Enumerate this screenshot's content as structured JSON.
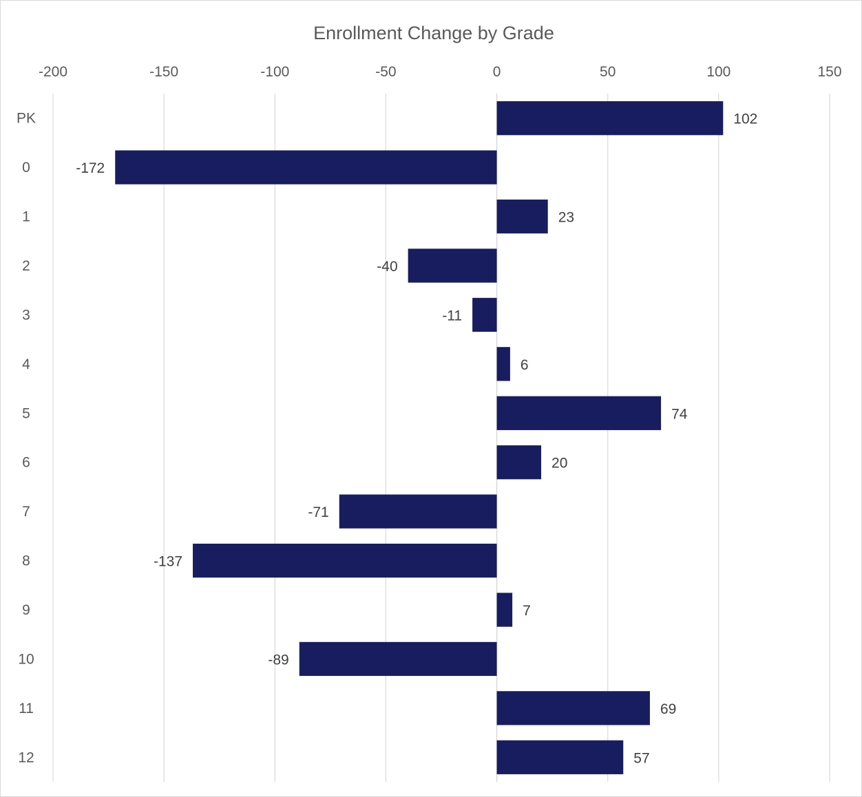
{
  "chart_data": {
    "type": "bar",
    "orientation": "horizontal",
    "title": "Enrollment Change by Grade",
    "categories": [
      "PK",
      "0",
      "1",
      "2",
      "3",
      "4",
      "5",
      "6",
      "7",
      "8",
      "9",
      "10",
      "11",
      "12"
    ],
    "values": [
      102,
      -172,
      23,
      -40,
      -11,
      6,
      74,
      20,
      -71,
      -137,
      7,
      -89,
      69,
      57
    ],
    "xlim": [
      -200,
      150
    ],
    "xticks": [
      -200,
      -150,
      -100,
      -50,
      0,
      50,
      100,
      150
    ],
    "xtick_labels": [
      "-200",
      "-150",
      "-100",
      "-50",
      "0",
      "50",
      "100",
      "150"
    ],
    "xaxis_position": "top",
    "grid": true,
    "data_labels": true,
    "legend": "none",
    "bar_color": "#171d5f",
    "grid_color": "#d9d9d9",
    "text_color": "#595959"
  }
}
